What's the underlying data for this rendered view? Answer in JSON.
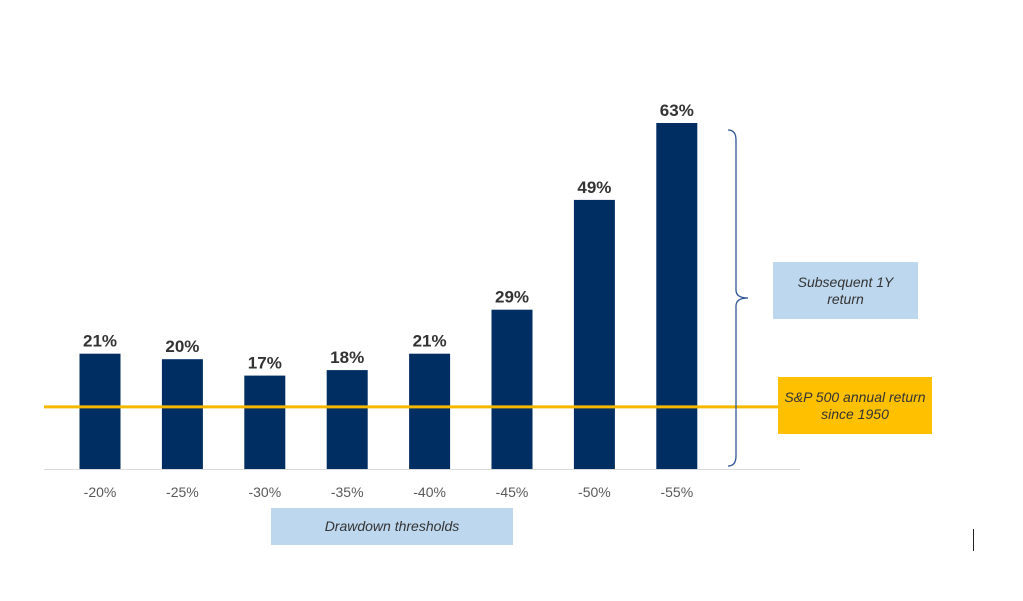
{
  "chart_data": {
    "type": "bar",
    "categories": [
      "-20%",
      "-25%",
      "-30%",
      "-35%",
      "-40%",
      "-45%",
      "-50%",
      "-55%"
    ],
    "values": [
      21,
      20,
      17,
      18,
      21,
      29,
      49,
      63
    ],
    "value_labels": [
      "21%",
      "20%",
      "17%",
      "18%",
      "21%",
      "29%",
      "49%",
      "63%"
    ],
    "xlabel": "Drawdown thresholds",
    "ylabel": "",
    "ylim": [
      0,
      63
    ],
    "grid": false,
    "reference_line": {
      "label": "S&P 500 annual return since 1950",
      "value": 11.3
    },
    "bracket_annotation": "Subsequent 1Y return",
    "colors": {
      "bar": "#002D62",
      "reference_line": "#F5B800",
      "reference_box": "#FFC000",
      "label_box": "#BDD7EE",
      "axis": "#D9D9D9",
      "bracket": "#2F5597"
    }
  }
}
